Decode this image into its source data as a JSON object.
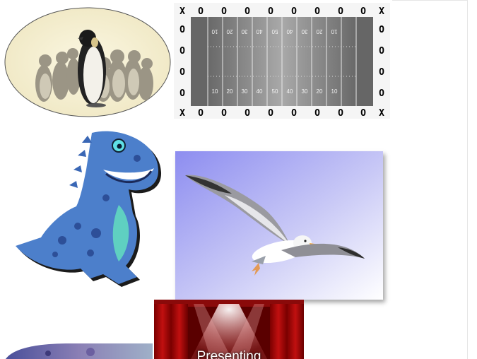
{
  "images": {
    "penguins": {
      "icon": "penguin-group-image"
    },
    "field": {
      "icon": "football-field-image",
      "corner_mark": "X",
      "ring_mark": "O",
      "yard_top": [
        "10",
        "20",
        "30",
        "40",
        "50",
        "40",
        "30",
        "20",
        "10"
      ],
      "yard_bottom": [
        "10",
        "20",
        "30",
        "40",
        "50",
        "40",
        "30",
        "20",
        "10"
      ]
    },
    "dinosaur": {
      "icon": "blue-dinosaur-image"
    },
    "seagull": {
      "icon": "seagull-image"
    },
    "stage": {
      "icon": "theater-stage-image",
      "caption": "Presenting"
    },
    "partial": {
      "icon": "partial-image"
    }
  }
}
